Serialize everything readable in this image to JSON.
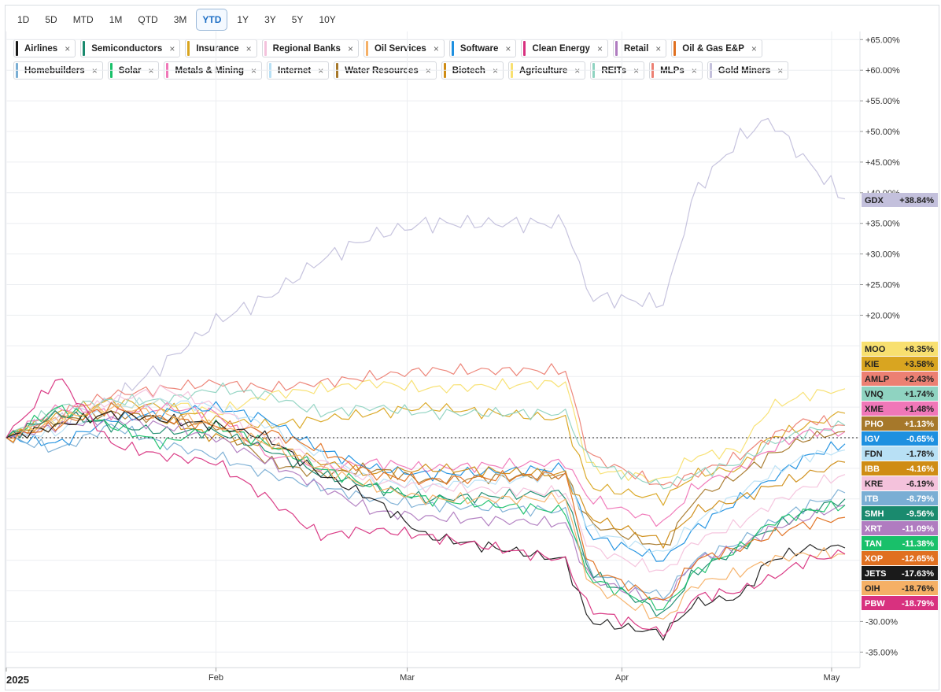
{
  "range_buttons": [
    "1D",
    "5D",
    "MTD",
    "1M",
    "QTD",
    "3M",
    "YTD",
    "1Y",
    "3Y",
    "5Y",
    "10Y"
  ],
  "active_range": "YTD",
  "legend_items": [
    {
      "label": "Airlines",
      "color": "#1a1a1a"
    },
    {
      "label": "Semiconductors",
      "color": "#1a8a6e"
    },
    {
      "label": "Insurance",
      "color": "#d9a520"
    },
    {
      "label": "Regional Banks",
      "color": "#f4c2dc"
    },
    {
      "label": "Oil Services",
      "color": "#f5b066"
    },
    {
      "label": "Software",
      "color": "#1e90e0"
    },
    {
      "label": "Clean Energy",
      "color": "#d8317f"
    },
    {
      "label": "Retail",
      "color": "#b07cc0"
    },
    {
      "label": "Oil & Gas E&P",
      "color": "#e07020"
    },
    {
      "label": "Homebuilders",
      "color": "#7aaed4"
    },
    {
      "label": "Solar",
      "color": "#19c06a"
    },
    {
      "label": "Metals & Mining",
      "color": "#f077b8"
    },
    {
      "label": "Internet",
      "color": "#b8e0f5"
    },
    {
      "label": "Water Resources",
      "color": "#a6782a"
    },
    {
      "label": "Biotech",
      "color": "#cf8c14"
    },
    {
      "label": "Agriculture",
      "color": "#f8e070"
    },
    {
      "label": "REITs",
      "color": "#8fd3c1"
    },
    {
      "label": "MLPs",
      "color": "#ec8073"
    },
    {
      "label": "Gold Miners",
      "color": "#c3c0dc"
    }
  ],
  "chart_data": {
    "type": "line",
    "x_axis_labels": [
      "2025",
      "Feb",
      "Mar",
      "Apr",
      "May"
    ],
    "y_axis_labels": [
      "+65.00%",
      "+60.00%",
      "+55.00%",
      "+50.00%",
      "+45.00%",
      "+40.00%",
      "+35.00%",
      "+30.00%",
      "+25.00%",
      "+20.00%",
      "-30.00%",
      "-35.00%"
    ],
    "y_range": [
      -37,
      66
    ],
    "baseline": 0,
    "x_range": [
      0,
      100
    ],
    "anchors": [
      0,
      13,
      18,
      26,
      36,
      51,
      52,
      54,
      58,
      64,
      72,
      82,
      90,
      95,
      100
    ],
    "series": [
      {
        "name": "Gold Miners",
        "ticker": "GDX",
        "last": "+38.84%",
        "color": "#c3c0dc",
        "tag_text": "#222",
        "pts": [
          0,
          3,
          6,
          12,
          19,
          23,
          29,
          33,
          35,
          35,
          23,
          22,
          40,
          49,
          52,
          45,
          39
        ]
      },
      {
        "name": "Agriculture",
        "ticker": "MOO",
        "last": "+8.35%",
        "color": "#f8e070",
        "tag_text": "#222",
        "pts": [
          0,
          3,
          5,
          6,
          4,
          7,
          8,
          9,
          8,
          9,
          -5,
          -7,
          -3,
          -2,
          5,
          7,
          8
        ]
      },
      {
        "name": "Insurance",
        "ticker": "KIE",
        "last": "+3.58%",
        "color": "#d9a520",
        "tag_text": "#222",
        "pts": [
          0,
          4,
          6,
          5,
          3,
          2,
          3,
          4,
          5,
          3,
          -8,
          -10,
          -6,
          -5,
          0,
          2,
          4
        ]
      },
      {
        "name": "MLPs",
        "ticker": "AMLP",
        "last": "+2.43%",
        "color": "#ec8073",
        "tag_text": "#222",
        "pts": [
          0,
          4,
          7,
          8,
          9,
          8,
          9,
          10,
          11,
          11,
          -3,
          -8,
          -6,
          -3,
          0,
          3,
          2
        ]
      },
      {
        "name": "REITs",
        "ticker": "VNQ",
        "last": "+1.74%",
        "color": "#8fd3c1",
        "tag_text": "#222",
        "pts": [
          0,
          5,
          6,
          6,
          8,
          7,
          4,
          5,
          4,
          4,
          -4,
          -8,
          -6,
          -4,
          -1,
          1,
          2
        ]
      },
      {
        "name": "Metals & Mining",
        "ticker": "XME",
        "last": "+1.48%",
        "color": "#f077b8",
        "tag_text": "#222",
        "pts": [
          0,
          5,
          4,
          5,
          4,
          -3,
          -5,
          -4,
          -5,
          -4,
          -10,
          -14,
          -8,
          -5,
          -2,
          1,
          1
        ]
      },
      {
        "name": "Water Resources",
        "ticker": "PHO",
        "last": "+1.13%",
        "color": "#a6782a",
        "tag_text": "#fff",
        "pts": [
          0,
          3,
          4,
          3,
          2,
          -4,
          -6,
          -5,
          -7,
          -6,
          -14,
          -18,
          -10,
          -6,
          -3,
          0,
          1
        ]
      },
      {
        "name": "Software",
        "ticker": "IGV",
        "last": "-0.65%",
        "color": "#1e90e0",
        "tag_text": "#fff",
        "pts": [
          0,
          -1,
          3,
          4,
          5,
          3,
          -2,
          -5,
          -6,
          -5,
          -16,
          -20,
          -15,
          -10,
          -7,
          -3,
          -1
        ]
      },
      {
        "name": "Internet",
        "ticker": "FDN",
        "last": "-1.78%",
        "color": "#b8e0f5",
        "tag_text": "#222",
        "pts": [
          0,
          1,
          5,
          6,
          5,
          2,
          -3,
          -7,
          -8,
          -6,
          -15,
          -19,
          -14,
          -9,
          -6,
          -3,
          -2
        ]
      },
      {
        "name": "Biotech",
        "ticker": "IBB",
        "last": "-4.16%",
        "color": "#cf8c14",
        "tag_text": "#fff",
        "pts": [
          0,
          2,
          4,
          3,
          0,
          -1,
          -4,
          -6,
          -5,
          -6,
          -13,
          -17,
          -12,
          -10,
          -8,
          -6,
          -4
        ]
      },
      {
        "name": "Regional Banks",
        "ticker": "KRE",
        "last": "-6.19%",
        "color": "#f4c2dc",
        "tag_text": "#222",
        "pts": [
          0,
          3,
          6,
          8,
          5,
          0,
          -4,
          -7,
          -8,
          -9,
          -18,
          -22,
          -17,
          -14,
          -11,
          -8,
          -6
        ]
      },
      {
        "name": "Homebuilders",
        "ticker": "ITB",
        "last": "-8.79%",
        "color": "#7aaed4",
        "tag_text": "#fff",
        "pts": [
          0,
          -2,
          2,
          -1,
          -3,
          -6,
          -8,
          -10,
          -11,
          -12,
          -22,
          -26,
          -20,
          -17,
          -14,
          -11,
          -9
        ]
      },
      {
        "name": "Semiconductors",
        "ticker": "SMH",
        "last": "-9.56%",
        "color": "#1a8a6e",
        "tag_text": "#fff",
        "pts": [
          0,
          4,
          2,
          1,
          1,
          -2,
          -6,
          -8,
          -10,
          -9,
          -22,
          -29,
          -22,
          -18,
          -15,
          -12,
          -10
        ]
      },
      {
        "name": "Retail",
        "ticker": "XRT",
        "last": "-11.09%",
        "color": "#b07cc0",
        "tag_text": "#fff",
        "pts": [
          0,
          2,
          3,
          2,
          0,
          -4,
          -8,
          -12,
          -13,
          -14,
          -23,
          -27,
          -20,
          -18,
          -15,
          -13,
          -11
        ]
      },
      {
        "name": "Solar",
        "ticker": "TAN",
        "last": "-11.38%",
        "color": "#19c06a",
        "tag_text": "#fff",
        "pts": [
          0,
          5,
          2,
          -1,
          2,
          -1,
          -5,
          -8,
          -10,
          -12,
          -23,
          -28,
          -22,
          -18,
          -14,
          -12,
          -11
        ]
      },
      {
        "name": "Oil & Gas E&P",
        "ticker": "XOP",
        "last": "-12.65%",
        "color": "#e07020",
        "tag_text": "#fff",
        "pts": [
          0,
          2,
          5,
          3,
          2,
          1,
          -2,
          -6,
          -7,
          -6,
          -21,
          -27,
          -20,
          -18,
          -16,
          -14,
          -13
        ]
      },
      {
        "name": "Airlines",
        "ticker": "JETS",
        "last": "-17.63%",
        "color": "#1a1a1a",
        "tag_text": "#fff",
        "pts": [
          0,
          2,
          4,
          3,
          2,
          0,
          -6,
          -10,
          -16,
          -20,
          -30,
          -32,
          -27,
          -26,
          -20,
          -18,
          -18
        ]
      },
      {
        "name": "Oil Services",
        "ticker": "OIH",
        "last": "-18.76%",
        "color": "#f5b066",
        "tag_text": "#222",
        "pts": [
          0,
          3,
          5,
          4,
          2,
          -1,
          -5,
          -8,
          -10,
          -10,
          -24,
          -30,
          -24,
          -22,
          -20,
          -19,
          -19
        ]
      },
      {
        "name": "Clean Energy",
        "ticker": "PBW",
        "last": "-18.79%",
        "color": "#d8317f",
        "tag_text": "#fff",
        "pts": [
          0,
          10,
          -1,
          -3,
          -4,
          -10,
          -16,
          -15,
          -16,
          -20,
          -28,
          -32,
          -26,
          -25,
          -23,
          -20,
          -19
        ]
      }
    ]
  }
}
